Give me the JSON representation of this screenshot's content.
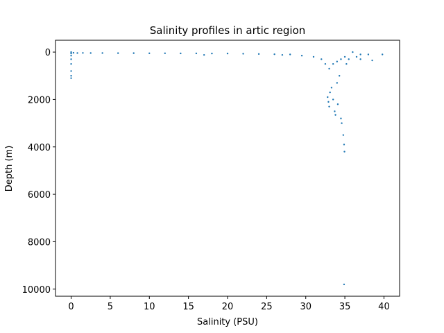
{
  "chart_data": {
    "type": "scatter",
    "title": "Salinity profiles in artic region",
    "xlabel": "Salinity (PSU)",
    "ylabel": "Depth (m)",
    "xlim": [
      -2,
      42
    ],
    "ylim": [
      10300,
      -500
    ],
    "y_inverted": true,
    "grid": false,
    "legend": "none",
    "marker_color": "#1f77b4",
    "xticks": [
      0,
      5,
      10,
      15,
      20,
      25,
      30,
      35,
      40
    ],
    "yticks": [
      0,
      2000,
      4000,
      6000,
      8000,
      10000
    ],
    "xtick_labels": [
      "0",
      "5",
      "10",
      "15",
      "20",
      "25",
      "30",
      "35",
      "40"
    ],
    "ytick_labels": [
      "0",
      "2000",
      "4000",
      "6000",
      "8000",
      "10000"
    ],
    "series": [
      {
        "points": [
          {
            "x": 0.0,
            "y": 0
          },
          {
            "x": 0.0,
            "y": 60
          },
          {
            "x": 0.0,
            "y": 150
          },
          {
            "x": 0.0,
            "y": 300
          },
          {
            "x": 0.0,
            "y": 500
          },
          {
            "x": 0.0,
            "y": 800
          },
          {
            "x": 0.0,
            "y": 1000
          },
          {
            "x": 0.0,
            "y": 1100
          },
          {
            "x": 0.3,
            "y": 30
          },
          {
            "x": 0.8,
            "y": 40
          },
          {
            "x": 1.5,
            "y": 35
          },
          {
            "x": 2.5,
            "y": 40
          },
          {
            "x": 4.0,
            "y": 40
          },
          {
            "x": 6.0,
            "y": 45
          },
          {
            "x": 8.0,
            "y": 45
          },
          {
            "x": 10.0,
            "y": 50
          },
          {
            "x": 12.0,
            "y": 50
          },
          {
            "x": 14.0,
            "y": 55
          },
          {
            "x": 16.0,
            "y": 55
          },
          {
            "x": 17.0,
            "y": 120
          },
          {
            "x": 18.0,
            "y": 60
          },
          {
            "x": 20.0,
            "y": 60
          },
          {
            "x": 22.0,
            "y": 70
          },
          {
            "x": 24.0,
            "y": 80
          },
          {
            "x": 26.0,
            "y": 90
          },
          {
            "x": 27.0,
            "y": 120
          },
          {
            "x": 28.0,
            "y": 100
          },
          {
            "x": 29.5,
            "y": 150
          },
          {
            "x": 31.0,
            "y": 200
          },
          {
            "x": 32.0,
            "y": 300
          },
          {
            "x": 32.5,
            "y": 500
          },
          {
            "x": 33.0,
            "y": 700
          },
          {
            "x": 33.5,
            "y": 500
          },
          {
            "x": 34.0,
            "y": 400
          },
          {
            "x": 34.5,
            "y": 300
          },
          {
            "x": 35.0,
            "y": 200
          },
          {
            "x": 32.8,
            "y": 1900
          },
          {
            "x": 32.9,
            "y": 2100
          },
          {
            "x": 33.0,
            "y": 2300
          },
          {
            "x": 33.1,
            "y": 1700
          },
          {
            "x": 33.3,
            "y": 1500
          },
          {
            "x": 33.5,
            "y": 2000
          },
          {
            "x": 33.7,
            "y": 2500
          },
          {
            "x": 33.8,
            "y": 2650
          },
          {
            "x": 34.0,
            "y": 1300
          },
          {
            "x": 34.1,
            "y": 2200
          },
          {
            "x": 34.3,
            "y": 1000
          },
          {
            "x": 34.5,
            "y": 2800
          },
          {
            "x": 34.6,
            "y": 3000
          },
          {
            "x": 34.8,
            "y": 3500
          },
          {
            "x": 34.9,
            "y": 3900
          },
          {
            "x": 34.95,
            "y": 4200
          },
          {
            "x": 35.2,
            "y": 500
          },
          {
            "x": 35.5,
            "y": 300
          },
          {
            "x": 36.0,
            "y": 0
          },
          {
            "x": 36.5,
            "y": 200
          },
          {
            "x": 37.0,
            "y": 100
          },
          {
            "x": 37.0,
            "y": 300
          },
          {
            "x": 38.0,
            "y": 100
          },
          {
            "x": 38.5,
            "y": 350
          },
          {
            "x": 39.8,
            "y": 100
          },
          {
            "x": 34.9,
            "y": 9800
          }
        ]
      }
    ]
  }
}
